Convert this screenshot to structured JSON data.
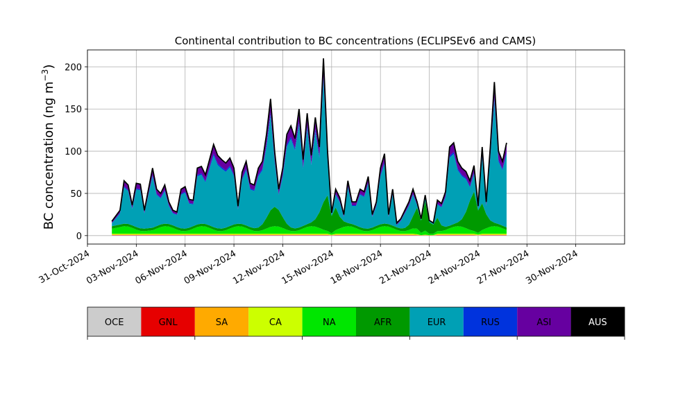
{
  "chart_data": {
    "type": "area",
    "title": "Continental contribution to BC concentrations (ECLIPSEv6 and CAMS)",
    "ylabel_main": "BC concentration (ng m",
    "ylabel_sup": "−3",
    "ylabel_close": ")",
    "xlim": [
      "2024-10-31",
      "2024-12-03"
    ],
    "ylim": [
      -10,
      220
    ],
    "y_ticks": [
      0,
      50,
      100,
      150,
      200
    ],
    "x_ticks": [
      "31-Oct-2024",
      "03-Nov-2024",
      "06-Nov-2024",
      "09-Nov-2024",
      "12-Nov-2024",
      "15-Nov-2024",
      "18-Nov-2024",
      "21-Nov-2024",
      "24-Nov-2024",
      "27-Nov-2024",
      "30-Nov-2024"
    ],
    "grid": true,
    "series_order": [
      "OCE",
      "GNL",
      "SA",
      "CA",
      "NA",
      "AFR",
      "EUR",
      "RUS",
      "ASI",
      "AUS"
    ],
    "total_points": [
      [
        "2024-11-01T12:00",
        17
      ],
      [
        "2024-11-02T00:00",
        30
      ],
      [
        "2024-11-02T06:00",
        65
      ],
      [
        "2024-11-02T12:00",
        60
      ],
      [
        "2024-11-02T18:00",
        36
      ],
      [
        "2024-11-03T00:00",
        62
      ],
      [
        "2024-11-03T06:00",
        61
      ],
      [
        "2024-11-03T12:00",
        30
      ],
      [
        "2024-11-04T00:00",
        80
      ],
      [
        "2024-11-04T06:00",
        55
      ],
      [
        "2024-11-04T12:00",
        50
      ],
      [
        "2024-11-04T18:00",
        60
      ],
      [
        "2024-11-05T00:00",
        40
      ],
      [
        "2024-11-05T06:00",
        30
      ],
      [
        "2024-11-05T12:00",
        28
      ],
      [
        "2024-11-05T18:00",
        55
      ],
      [
        "2024-11-06T00:00",
        58
      ],
      [
        "2024-11-06T06:00",
        43
      ],
      [
        "2024-11-06T12:00",
        42
      ],
      [
        "2024-11-06T18:00",
        80
      ],
      [
        "2024-11-07T00:00",
        82
      ],
      [
        "2024-11-07T06:00",
        72
      ],
      [
        "2024-11-07T12:00",
        90
      ],
      [
        "2024-11-07T18:00",
        108
      ],
      [
        "2024-11-08T00:00",
        95
      ],
      [
        "2024-11-08T06:00",
        90
      ],
      [
        "2024-11-08T12:00",
        86
      ],
      [
        "2024-11-08T18:00",
        92
      ],
      [
        "2024-11-09T00:00",
        80
      ],
      [
        "2024-11-09T06:00",
        35
      ],
      [
        "2024-11-09T12:00",
        75
      ],
      [
        "2024-11-09T18:00",
        88
      ],
      [
        "2024-11-10T00:00",
        62
      ],
      [
        "2024-11-10T06:00",
        60
      ],
      [
        "2024-11-10T12:00",
        80
      ],
      [
        "2024-11-10T18:00",
        88
      ],
      [
        "2024-11-11T00:00",
        120
      ],
      [
        "2024-11-11T06:00",
        162
      ],
      [
        "2024-11-11T12:00",
        100
      ],
      [
        "2024-11-11T18:00",
        55
      ],
      [
        "2024-11-12T00:00",
        80
      ],
      [
        "2024-11-12T06:00",
        120
      ],
      [
        "2024-11-12T12:00",
        130
      ],
      [
        "2024-11-12T18:00",
        115
      ],
      [
        "2024-11-13T00:00",
        150
      ],
      [
        "2024-11-13T06:00",
        90
      ],
      [
        "2024-11-13T12:00",
        145
      ],
      [
        "2024-11-13T18:00",
        95
      ],
      [
        "2024-11-14T00:00",
        140
      ],
      [
        "2024-11-14T06:00",
        105
      ],
      [
        "2024-11-14T12:00",
        210
      ],
      [
        "2024-11-14T18:00",
        100
      ],
      [
        "2024-11-15T00:00",
        27
      ],
      [
        "2024-11-15T06:00",
        55
      ],
      [
        "2024-11-15T12:00",
        45
      ],
      [
        "2024-11-15T18:00",
        25
      ],
      [
        "2024-11-16T00:00",
        65
      ],
      [
        "2024-11-16T06:00",
        40
      ],
      [
        "2024-11-16T12:00",
        40
      ],
      [
        "2024-11-16T18:00",
        55
      ],
      [
        "2024-11-17T00:00",
        52
      ],
      [
        "2024-11-17T06:00",
        70
      ],
      [
        "2024-11-17T12:00",
        25
      ],
      [
        "2024-11-17T18:00",
        40
      ],
      [
        "2024-11-18T00:00",
        80
      ],
      [
        "2024-11-18T06:00",
        97
      ],
      [
        "2024-11-18T12:00",
        25
      ],
      [
        "2024-11-18T18:00",
        55
      ],
      [
        "2024-11-19T00:00",
        15
      ],
      [
        "2024-11-19T06:00",
        20
      ],
      [
        "2024-11-19T12:00",
        30
      ],
      [
        "2024-11-19T18:00",
        40
      ],
      [
        "2024-11-20T00:00",
        55
      ],
      [
        "2024-11-20T06:00",
        40
      ],
      [
        "2024-11-20T12:00",
        20
      ],
      [
        "2024-11-20T18:00",
        48
      ],
      [
        "2024-11-21T00:00",
        18
      ],
      [
        "2024-11-21T06:00",
        15
      ],
      [
        "2024-11-21T12:00",
        42
      ],
      [
        "2024-11-21T18:00",
        38
      ],
      [
        "2024-11-22T00:00",
        52
      ],
      [
        "2024-11-22T06:00",
        105
      ],
      [
        "2024-11-22T12:00",
        110
      ],
      [
        "2024-11-22T18:00",
        88
      ],
      [
        "2024-11-23T00:00",
        80
      ],
      [
        "2024-11-23T06:00",
        76
      ],
      [
        "2024-11-23T12:00",
        65
      ],
      [
        "2024-11-23T18:00",
        83
      ],
      [
        "2024-11-24T00:00",
        35
      ],
      [
        "2024-11-24T06:00",
        105
      ],
      [
        "2024-11-24T12:00",
        40
      ],
      [
        "2024-11-24T18:00",
        105
      ],
      [
        "2024-11-25T00:00",
        182
      ],
      [
        "2024-11-25T06:00",
        100
      ],
      [
        "2024-11-25T12:00",
        88
      ],
      [
        "2024-11-25T18:00",
        110
      ]
    ]
  },
  "legend": {
    "items": [
      {
        "label": "OCE",
        "color": "#cccccc",
        "text_color": "#000000"
      },
      {
        "label": "GNL",
        "color": "#e60000",
        "text_color": "#000000"
      },
      {
        "label": "SA",
        "color": "#ffaa00",
        "text_color": "#000000"
      },
      {
        "label": "CA",
        "color": "#ccff00",
        "text_color": "#000000"
      },
      {
        "label": "NA",
        "color": "#00e600",
        "text_color": "#000000"
      },
      {
        "label": "AFR",
        "color": "#009900",
        "text_color": "#000000"
      },
      {
        "label": "EUR",
        "color": "#00a0b5",
        "text_color": "#000000"
      },
      {
        "label": "RUS",
        "color": "#0033dd",
        "text_color": "#000000"
      },
      {
        "label": "ASI",
        "color": "#6600a0",
        "text_color": "#000000"
      },
      {
        "label": "AUS",
        "color": "#000000",
        "text_color": "#ffffff"
      }
    ]
  }
}
